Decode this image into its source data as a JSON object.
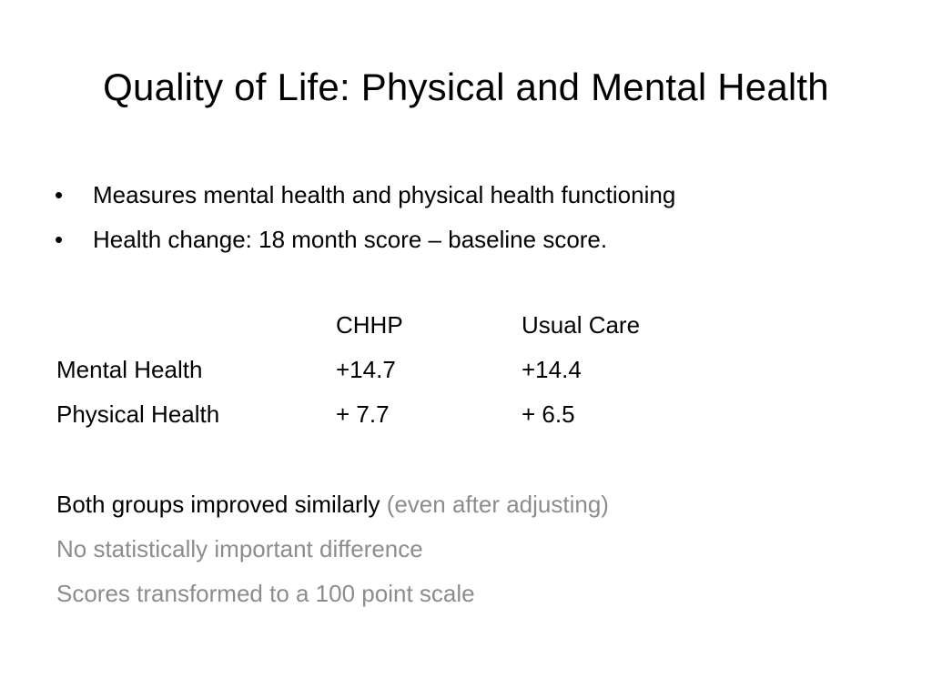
{
  "slide": {
    "title": "Quality of Life:  Physical and Mental Health",
    "bullets": [
      "Measures mental health and physical health functioning",
      "Health change:  18 month score – baseline score."
    ],
    "bullet_symbol": "•",
    "table": {
      "headers": [
        "",
        "CHHP",
        "Usual Care"
      ],
      "rows": [
        [
          "Mental Health",
          "+14.7",
          "+14.4"
        ],
        [
          "Physical Health",
          "+ 7.7",
          "+ 6.5"
        ]
      ]
    },
    "notes": {
      "line1_main": "Both groups improved similarly",
      "line1_aside": " (even after adjusting)",
      "line2": "No statistically important difference",
      "line3": "Scores transformed to a 100 point scale"
    },
    "colors": {
      "text": "#000000",
      "muted": "#8c8c8c",
      "background": "#ffffff"
    }
  }
}
